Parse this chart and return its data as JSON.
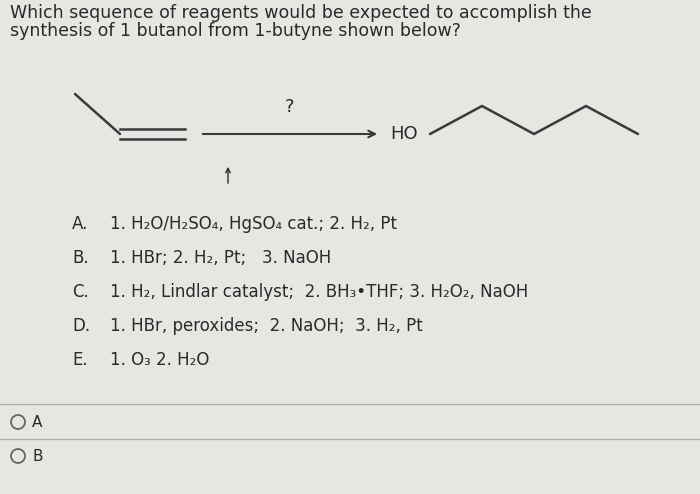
{
  "background_color": "#e8e6e3",
  "title_line1": "Which sequence of reagents would be expected to accomplish the",
  "title_line2": "synthesis of 1 butanol from 1-butyne shown below?",
  "question_mark": "?",
  "ho_label": "HO",
  "options": [
    {
      "letter": "A.",
      "text": "1. H₂O/H₂SO₄, HgSO₄ cat.; 2. H₂, Pt"
    },
    {
      "letter": "B.",
      "text": "1. HBr; 2. H₂, Pt;   3. NaOH"
    },
    {
      "letter": "C.",
      "text": "1. H₂, Lindlar catalyst;  2. BH₃•THF; 3. H₂O₂, NaOH"
    },
    {
      "letter": "D.",
      "text": "1. HBr, peroxides;  2. NaOH;  3. H₂, Pt"
    },
    {
      "letter": "E.",
      "text": "1. O₃ 2. H₂O"
    }
  ],
  "radio_labels": [
    "A",
    "B"
  ],
  "font_size_title": 12.5,
  "font_size_options": 12,
  "text_color": "#2a2a2a",
  "line_color": "#3a3a3a",
  "divider_color": "#b0aeab",
  "radio_color": "#666666"
}
